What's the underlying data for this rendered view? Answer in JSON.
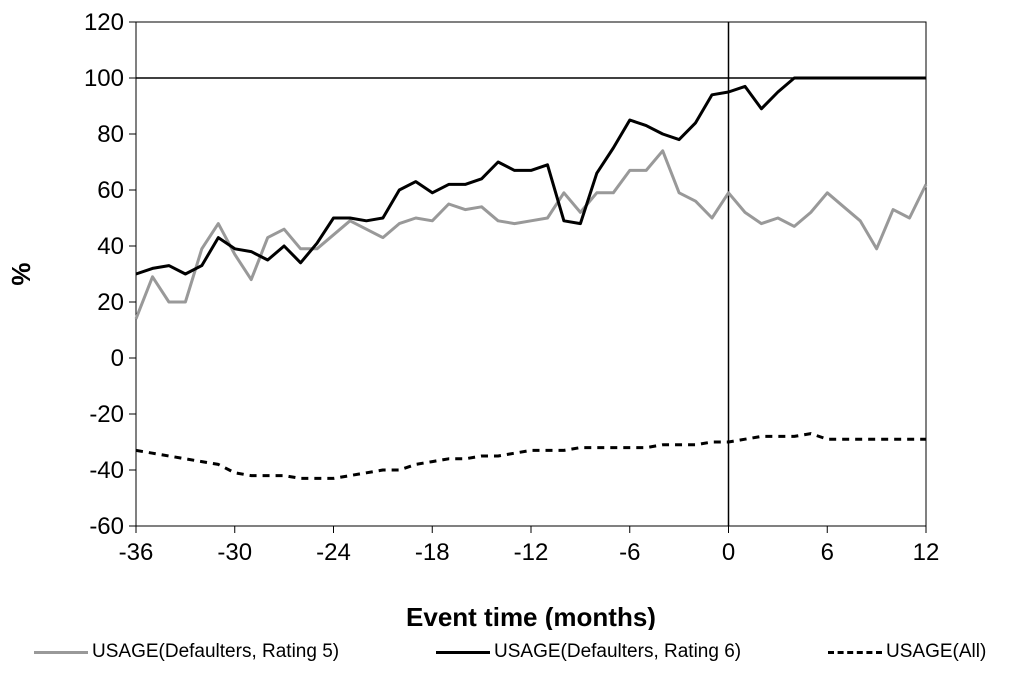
{
  "chart_data": {
    "type": "line",
    "title": "",
    "xlabel": "Event time (months)",
    "ylabel": "%",
    "xlim": [
      -36,
      12
    ],
    "ylim": [
      -60,
      120
    ],
    "xticks": [
      "-36",
      "-30",
      "-24",
      "-18",
      "-12",
      "-6",
      "0",
      "6",
      "12"
    ],
    "yticks": [
      "120",
      "100",
      "80",
      "60",
      "40",
      "20",
      "0",
      "-20",
      "-40",
      "-60"
    ],
    "reference_lines": {
      "horizontal_y": 100,
      "vertical_x": 0
    },
    "grid": false,
    "legend_position": "bottom",
    "x": [
      -36,
      -35,
      -34,
      -33,
      -32,
      -31,
      -30,
      -29,
      -28,
      -27,
      -26,
      -25,
      -24,
      -23,
      -22,
      -21,
      -20,
      -19,
      -18,
      -17,
      -16,
      -15,
      -14,
      -13,
      -12,
      -11,
      -10,
      -9,
      -8,
      -7,
      -6,
      -5,
      -4,
      -3,
      -2,
      -1,
      0,
      1,
      2,
      3,
      4,
      5,
      6,
      7,
      8,
      9,
      10,
      11,
      12
    ],
    "series": [
      {
        "name": "USAGE(Defaulters, Rating 5)",
        "color": "#999999",
        "style": "solid",
        "values": [
          14,
          29,
          20,
          20,
          39,
          48,
          37,
          28,
          43,
          46,
          39,
          39,
          44,
          49,
          46,
          43,
          48,
          50,
          49,
          55,
          53,
          54,
          49,
          48,
          49,
          50,
          59,
          52,
          59,
          59,
          67,
          67,
          74,
          59,
          56,
          50,
          59,
          52,
          48,
          50,
          47,
          52,
          59,
          54,
          49,
          39,
          53,
          50,
          62
        ]
      },
      {
        "name": "USAGE(Defaulters, Rating 6)",
        "color": "#000000",
        "style": "solid",
        "values": [
          30,
          32,
          33,
          30,
          33,
          43,
          39,
          38,
          35,
          40,
          34,
          41,
          50,
          50,
          49,
          50,
          60,
          63,
          59,
          62,
          62,
          64,
          70,
          67,
          67,
          69,
          49,
          48,
          66,
          75,
          85,
          83,
          80,
          78,
          84,
          94,
          95,
          97,
          89,
          95,
          100,
          100,
          100,
          100,
          100,
          100,
          100,
          100,
          100
        ]
      },
      {
        "name": "USAGE(All)",
        "color": "#000000",
        "style": "dashed",
        "values": [
          -33,
          -34,
          -35,
          -36,
          -37,
          -38,
          -41,
          -42,
          -42,
          -42,
          -43,
          -43,
          -43,
          -42,
          -41,
          -40,
          -40,
          -38,
          -37,
          -36,
          -36,
          -35,
          -35,
          -34,
          -33,
          -33,
          -33,
          -32,
          -32,
          -32,
          -32,
          -32,
          -31,
          -31,
          -31,
          -30,
          -30,
          -29,
          -28,
          -28,
          -28,
          -27,
          -29,
          -29,
          -29,
          -29,
          -29,
          -29,
          -29
        ]
      }
    ]
  }
}
